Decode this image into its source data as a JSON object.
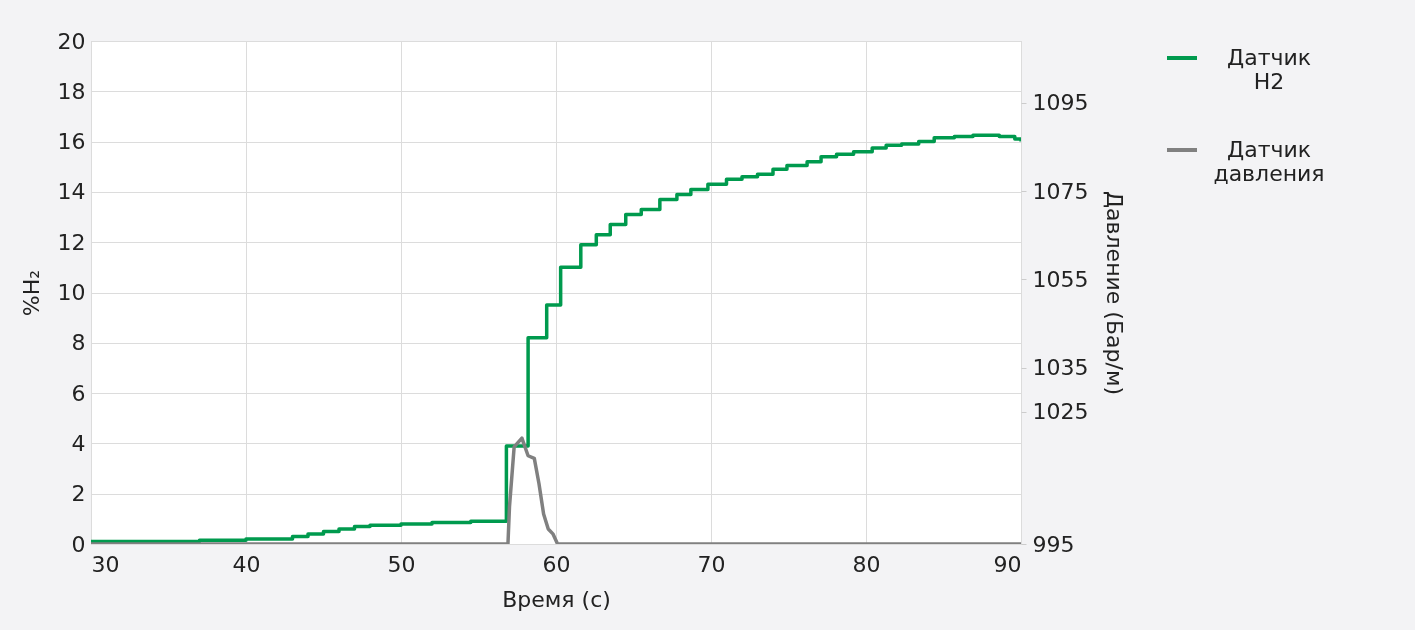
{
  "chart_data": {
    "type": "line",
    "xlabel": "Время (с)",
    "ylabel": "%H₂",
    "y2label": "Давление (Бар/м)",
    "xlim": [
      30,
      90
    ],
    "xticks": [
      30,
      40,
      50,
      60,
      70,
      80,
      90
    ],
    "ylim": [
      0,
      20
    ],
    "yticks": [
      0,
      2,
      4,
      6,
      8,
      10,
      12,
      14,
      16,
      18,
      20
    ],
    "y2lim": [
      995,
      1109
    ],
    "y2ticks": [
      995,
      1025,
      1035,
      1055,
      1075,
      1095
    ],
    "grid": true,
    "legend": "right",
    "line_style": "solid",
    "series": [
      {
        "name": "Датчик H2",
        "type": "step",
        "color": "#009a4e",
        "x": [
          30,
          37,
          40,
          43,
          44,
          45,
          46,
          47,
          48,
          50,
          52,
          54.5,
          56.8,
          58.2,
          59.4,
          60.3,
          61.6,
          62.6,
          63.5,
          64.5,
          65.5,
          66.7,
          67.8,
          68.7,
          69.8,
          71.0,
          72.0,
          73.0,
          74.0,
          74.9,
          76.2,
          77.1,
          78.1,
          79.2,
          80.4,
          81.3,
          82.3,
          83.4,
          84.4,
          85.7,
          86.9,
          88.6,
          89.6,
          90
        ],
        "values": [
          0.1,
          0.15,
          0.2,
          0.3,
          0.4,
          0.5,
          0.6,
          0.7,
          0.75,
          0.8,
          0.85,
          0.9,
          3.9,
          8.2,
          9.5,
          11.0,
          11.9,
          12.3,
          12.7,
          13.1,
          13.3,
          13.7,
          13.9,
          14.1,
          14.3,
          14.5,
          14.6,
          14.7,
          14.9,
          15.05,
          15.2,
          15.4,
          15.5,
          15.6,
          15.75,
          15.85,
          15.9,
          16.0,
          16.15,
          16.2,
          16.25,
          16.2,
          16.1,
          16.0
        ]
      },
      {
        "name": "Датчик давления",
        "type": "line",
        "axis": "y2",
        "color": "#808080",
        "x": [
          30,
          56.9,
          57.0,
          57.3,
          57.8,
          58.2,
          58.6,
          58.9,
          59.2,
          59.5,
          59.8,
          60.1,
          90
        ],
        "values": [
          995,
          995,
          1003.5,
          1017,
          1019,
          1015,
          1014.4,
          1008.7,
          1001.8,
          998.4,
          997.3,
          995,
          995
        ]
      }
    ]
  }
}
